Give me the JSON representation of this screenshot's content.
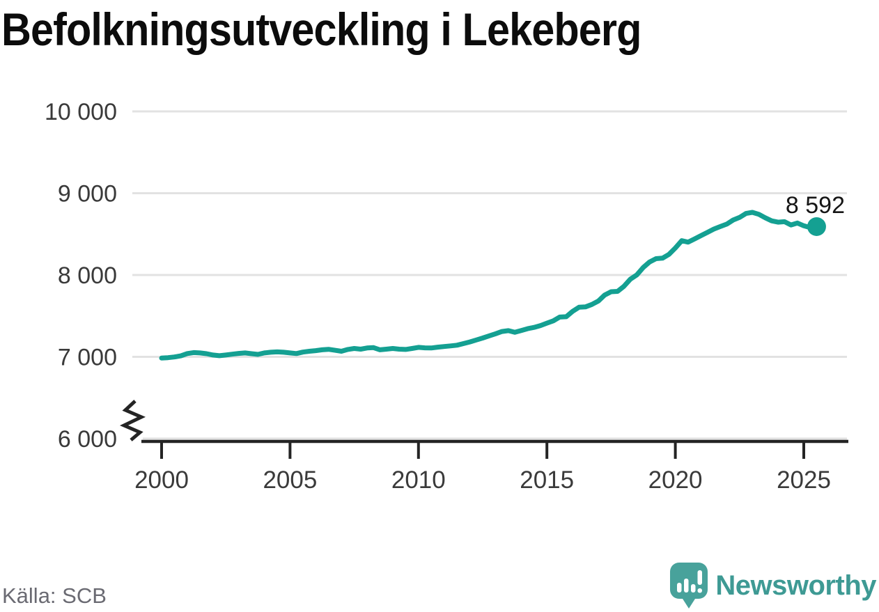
{
  "source": "Källa: SCB",
  "logo": {
    "text": "Newsworthy"
  },
  "colors": {
    "line": "#14a092",
    "grid": "#e2e2e2",
    "axis": "#242424",
    "tick_label": "#3a3a3a",
    "end_label": "#161616",
    "logo_text": "#3e9a94",
    "logo_mark": "#48a29b"
  },
  "chart_data": {
    "type": "line",
    "title": "Befolkningsutveckling i Lekeberg",
    "xlabel": "",
    "ylabel": "",
    "xlim": [
      2000,
      2025.5
    ],
    "ylim": [
      6000,
      10000
    ],
    "grid": true,
    "axis_break_below": 6000,
    "legend_position": "none",
    "end_label": "8 592",
    "end_value": 8592,
    "yticks": [
      {
        "value": 6000,
        "label": "6 000"
      },
      {
        "value": 7000,
        "label": "7 000"
      },
      {
        "value": 8000,
        "label": "8 000"
      },
      {
        "value": 9000,
        "label": "9 000"
      },
      {
        "value": 10000,
        "label": "10 000"
      }
    ],
    "xticks": [
      {
        "value": 2000,
        "label": "2000"
      },
      {
        "value": 2005,
        "label": "2005"
      },
      {
        "value": 2010,
        "label": "2010"
      },
      {
        "value": 2015,
        "label": "2015"
      },
      {
        "value": 2020,
        "label": "2020"
      },
      {
        "value": 2025,
        "label": "2025"
      }
    ],
    "x": [
      2000.0,
      2000.25,
      2000.5,
      2000.75,
      2001.0,
      2001.25,
      2001.5,
      2001.75,
      2002.0,
      2002.25,
      2002.5,
      2002.75,
      2003.0,
      2003.25,
      2003.5,
      2003.75,
      2004.0,
      2004.25,
      2004.5,
      2004.75,
      2005.0,
      2005.25,
      2005.5,
      2005.75,
      2006.0,
      2006.25,
      2006.5,
      2006.75,
      2007.0,
      2007.25,
      2007.5,
      2007.75,
      2008.0,
      2008.25,
      2008.5,
      2008.75,
      2009.0,
      2009.25,
      2009.5,
      2009.75,
      2010.0,
      2010.25,
      2010.5,
      2010.75,
      2011.0,
      2011.25,
      2011.5,
      2011.75,
      2012.0,
      2012.25,
      2012.5,
      2012.75,
      2013.0,
      2013.25,
      2013.5,
      2013.75,
      2014.0,
      2014.25,
      2014.5,
      2014.75,
      2015.0,
      2015.25,
      2015.5,
      2015.75,
      2016.0,
      2016.25,
      2016.5,
      2016.75,
      2017.0,
      2017.25,
      2017.5,
      2017.75,
      2018.0,
      2018.25,
      2018.5,
      2018.75,
      2019.0,
      2019.25,
      2019.5,
      2019.75,
      2020.0,
      2020.25,
      2020.5,
      2020.75,
      2021.0,
      2021.25,
      2021.5,
      2021.75,
      2022.0,
      2022.25,
      2022.5,
      2022.75,
      2023.0,
      2023.25,
      2023.5,
      2023.75,
      2024.0,
      2024.25,
      2024.5,
      2024.75,
      2025.0,
      2025.25,
      2025.5
    ],
    "values": [
      6985,
      6990,
      6998,
      7012,
      7040,
      7052,
      7048,
      7038,
      7022,
      7014,
      7022,
      7032,
      7042,
      7048,
      7038,
      7030,
      7048,
      7056,
      7060,
      7056,
      7048,
      7040,
      7058,
      7068,
      7076,
      7086,
      7092,
      7080,
      7068,
      7090,
      7102,
      7094,
      7108,
      7112,
      7086,
      7094,
      7102,
      7094,
      7090,
      7102,
      7116,
      7110,
      7108,
      7118,
      7126,
      7134,
      7142,
      7162,
      7182,
      7206,
      7230,
      7256,
      7282,
      7310,
      7320,
      7300,
      7322,
      7344,
      7360,
      7382,
      7412,
      7440,
      7486,
      7490,
      7556,
      7606,
      7610,
      7640,
      7682,
      7756,
      7796,
      7800,
      7862,
      7950,
      8002,
      8092,
      8160,
      8200,
      8206,
      8252,
      8330,
      8420,
      8402,
      8442,
      8482,
      8522,
      8562,
      8592,
      8622,
      8672,
      8704,
      8752,
      8766,
      8742,
      8700,
      8662,
      8646,
      8652,
      8612,
      8636,
      8602,
      8580,
      8592
    ]
  }
}
